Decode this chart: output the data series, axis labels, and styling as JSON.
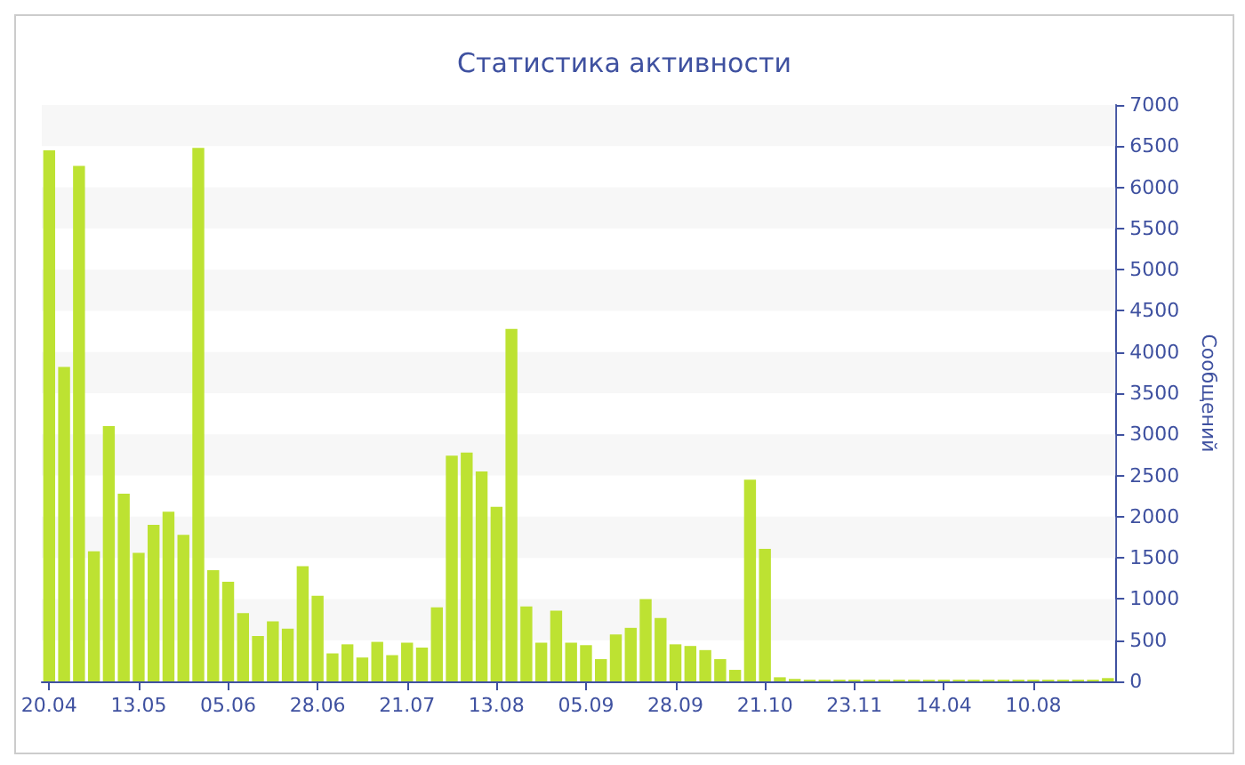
{
  "chart_data": {
    "type": "bar",
    "title": "Статистика активности",
    "ylabel": "Сообщений",
    "color": "#bde232",
    "categories": [
      "20.04",
      null,
      null,
      null,
      null,
      null,
      "13.05",
      null,
      null,
      null,
      null,
      null,
      "05.06",
      null,
      null,
      null,
      null,
      null,
      "28.06",
      null,
      null,
      null,
      null,
      null,
      "21.07",
      null,
      null,
      null,
      null,
      null,
      "13.08",
      null,
      null,
      null,
      null,
      null,
      "05.09",
      null,
      null,
      null,
      null,
      null,
      "28.09",
      null,
      null,
      null,
      null,
      null,
      "21.10",
      null,
      null,
      null,
      null,
      null,
      "23.11",
      null,
      null,
      null,
      null,
      null,
      "14.04",
      null,
      null,
      null,
      null,
      null,
      "10.08",
      null,
      null,
      null,
      null,
      null
    ],
    "values": [
      6450,
      3820,
      6260,
      1580,
      3100,
      2280,
      1560,
      1900,
      2060,
      1780,
      6480,
      1350,
      1210,
      830,
      550,
      730,
      640,
      1400,
      1040,
      340,
      450,
      290,
      480,
      320,
      470,
      410,
      900,
      2740,
      2780,
      2550,
      2120,
      4280,
      910,
      470,
      860,
      470,
      440,
      270,
      570,
      650,
      1000,
      770,
      450,
      430,
      380,
      270,
      140,
      2450,
      1610,
      50,
      30,
      20,
      20,
      20,
      20,
      20,
      20,
      20,
      20,
      20,
      20,
      20,
      20,
      20,
      20,
      20,
      20,
      20,
      20,
      20,
      20,
      40
    ],
    "ylim": [
      0,
      7000
    ],
    "yticks": [
      0,
      500,
      1000,
      1500,
      2000,
      2500,
      3000,
      3500,
      4000,
      4500,
      5000,
      5500,
      6000,
      6500,
      7000
    ],
    "bands": [
      {
        "axis": "y",
        "from": 500,
        "to": 1000,
        "color": "#f7f7f7"
      },
      {
        "axis": "y",
        "from": 1500,
        "to": 2000,
        "color": "#f7f7f7"
      },
      {
        "axis": "y",
        "from": 2500,
        "to": 3000,
        "color": "#f7f7f7"
      },
      {
        "axis": "y",
        "from": 3500,
        "to": 4000,
        "color": "#f7f7f7"
      },
      {
        "axis": "y",
        "from": 4500,
        "to": 5000,
        "color": "#f7f7f7"
      },
      {
        "axis": "y",
        "from": 5500,
        "to": 6000,
        "color": "#f7f7f7"
      },
      {
        "axis": "y",
        "from": 6500,
        "to": 7000,
        "color": "#f7f7f7"
      }
    ]
  }
}
